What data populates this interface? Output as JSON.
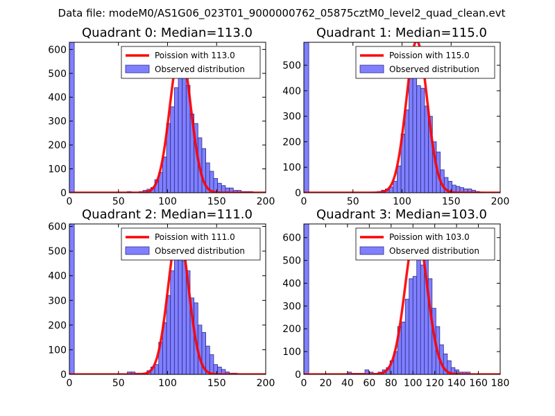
{
  "suptitle": "Data file: modeM0/AS1G06_023T01_9000000762_05875cztM0_level2_quad_clean.evt",
  "colors": {
    "bar_fill": "#8080ff",
    "bar_edge": "#2a2a8a",
    "poisson_line": "#ff0000"
  },
  "chart_data": [
    {
      "type": "bar",
      "title": "Quadrant 0: Median=113.0",
      "xlim": [
        0,
        200
      ],
      "ylim": [
        0,
        630
      ],
      "xticks": [
        "0",
        "50",
        "100",
        "150",
        "200"
      ],
      "yticks": [
        "0",
        "100",
        "200",
        "300",
        "400",
        "500",
        "600"
      ],
      "legend": [
        "Poission with 113.0",
        "Observed distribution"
      ],
      "bin_width": 3.95,
      "first_bar": {
        "x": 0,
        "height": 630,
        "width": 5
      },
      "bins_x": [
        59,
        63,
        67,
        71,
        75,
        79,
        83,
        87,
        91,
        95,
        99,
        103,
        107,
        111,
        115,
        119,
        123,
        127,
        131,
        135,
        139,
        143,
        147,
        151,
        155,
        159,
        163,
        167,
        171,
        175,
        179,
        183,
        187,
        191
      ],
      "values": [
        5,
        2,
        0,
        5,
        10,
        15,
        22,
        55,
        85,
        150,
        290,
        360,
        440,
        500,
        520,
        450,
        330,
        290,
        230,
        185,
        125,
        90,
        60,
        40,
        30,
        20,
        20,
        10,
        10,
        5,
        5,
        5,
        0,
        0
      ],
      "poisson_mean": 113.0,
      "poisson_peak": 600,
      "poisson_sigma": 10.6
    },
    {
      "type": "bar",
      "title": "Quadrant 1: Median=115.0",
      "xlim": [
        0,
        200
      ],
      "ylim": [
        0,
        590
      ],
      "xticks": [
        "0",
        "50",
        "100",
        "150",
        "200"
      ],
      "yticks": [
        "0",
        "100",
        "200",
        "300",
        "400",
        "500"
      ],
      "legend": [
        "Poission with 115.0",
        "Observed distribution"
      ],
      "bin_width": 3.95,
      "first_bar": {
        "x": 0,
        "height": 590,
        "width": 5
      },
      "bins_x": [
        67,
        71,
        75,
        79,
        83,
        87,
        91,
        95,
        99,
        103,
        107,
        111,
        115,
        119,
        123,
        127,
        131,
        135,
        139,
        143,
        147,
        151,
        155,
        159,
        163,
        167,
        171,
        175,
        179,
        183,
        187
      ],
      "values": [
        3,
        3,
        5,
        10,
        15,
        22,
        45,
        105,
        230,
        325,
        480,
        520,
        420,
        410,
        340,
        300,
        200,
        160,
        90,
        60,
        45,
        30,
        25,
        20,
        15,
        15,
        10,
        5,
        3,
        0,
        0
      ],
      "poisson_mean": 115.0,
      "poisson_peak": 595,
      "poisson_sigma": 10.7
    },
    {
      "type": "bar",
      "title": "Quadrant 2: Median=111.0",
      "xlim": [
        0,
        200
      ],
      "ylim": [
        0,
        610
      ],
      "xticks": [
        "0",
        "50",
        "100",
        "150",
        "200"
      ],
      "yticks": [
        "0",
        "100",
        "200",
        "300",
        "400",
        "500",
        "600"
      ],
      "legend": [
        "Poission with 111.0",
        "Observed distribution"
      ],
      "bin_width": 3.95,
      "first_bar": {
        "x": 0,
        "height": 610,
        "width": 5
      },
      "bins_x": [
        59,
        63,
        67,
        71,
        75,
        79,
        83,
        87,
        91,
        95,
        99,
        103,
        107,
        111,
        115,
        119,
        123,
        127,
        131,
        135,
        139,
        143,
        147,
        151,
        155,
        159,
        163,
        167,
        171,
        175,
        179,
        183,
        187
      ],
      "values": [
        10,
        10,
        5,
        5,
        5,
        15,
        30,
        40,
        130,
        210,
        320,
        420,
        560,
        550,
        460,
        420,
        310,
        290,
        200,
        170,
        115,
        80,
        40,
        30,
        20,
        10,
        5,
        5,
        0,
        0,
        0,
        0,
        0
      ],
      "poisson_mean": 111.0,
      "poisson_peak": 580,
      "poisson_sigma": 10.5
    },
    {
      "type": "bar",
      "title": "Quadrant 3: Median=103.0",
      "xlim": [
        0,
        180
      ],
      "ylim": [
        0,
        660
      ],
      "xticks": [
        "0",
        "20",
        "40",
        "60",
        "80",
        "100",
        "120",
        "140",
        "160",
        "180"
      ],
      "yticks": [
        "0",
        "100",
        "200",
        "300",
        "400",
        "500",
        "600"
      ],
      "legend": [
        "Poission with 103.0",
        "Observed distribution"
      ],
      "bin_width": 3.55,
      "first_bar": {
        "x": 0,
        "height": 660,
        "width": 4.5
      },
      "bins_x": [
        40,
        44,
        48,
        52,
        56,
        60,
        64,
        68,
        72,
        75.5,
        79,
        82.5,
        86,
        89.5,
        93,
        96.5,
        100,
        103.5,
        107,
        110.5,
        114,
        117.5,
        121,
        124.5,
        128,
        131.5,
        135,
        138.5,
        142,
        145.5,
        149
      ],
      "values": [
        10,
        5,
        5,
        5,
        20,
        10,
        5,
        10,
        20,
        30,
        60,
        100,
        210,
        230,
        330,
        420,
        430,
        590,
        480,
        510,
        420,
        290,
        210,
        130,
        90,
        60,
        30,
        20,
        10,
        10,
        10
      ],
      "poisson_mean": 103.0,
      "poisson_peak": 635,
      "poisson_sigma": 10.15
    }
  ]
}
